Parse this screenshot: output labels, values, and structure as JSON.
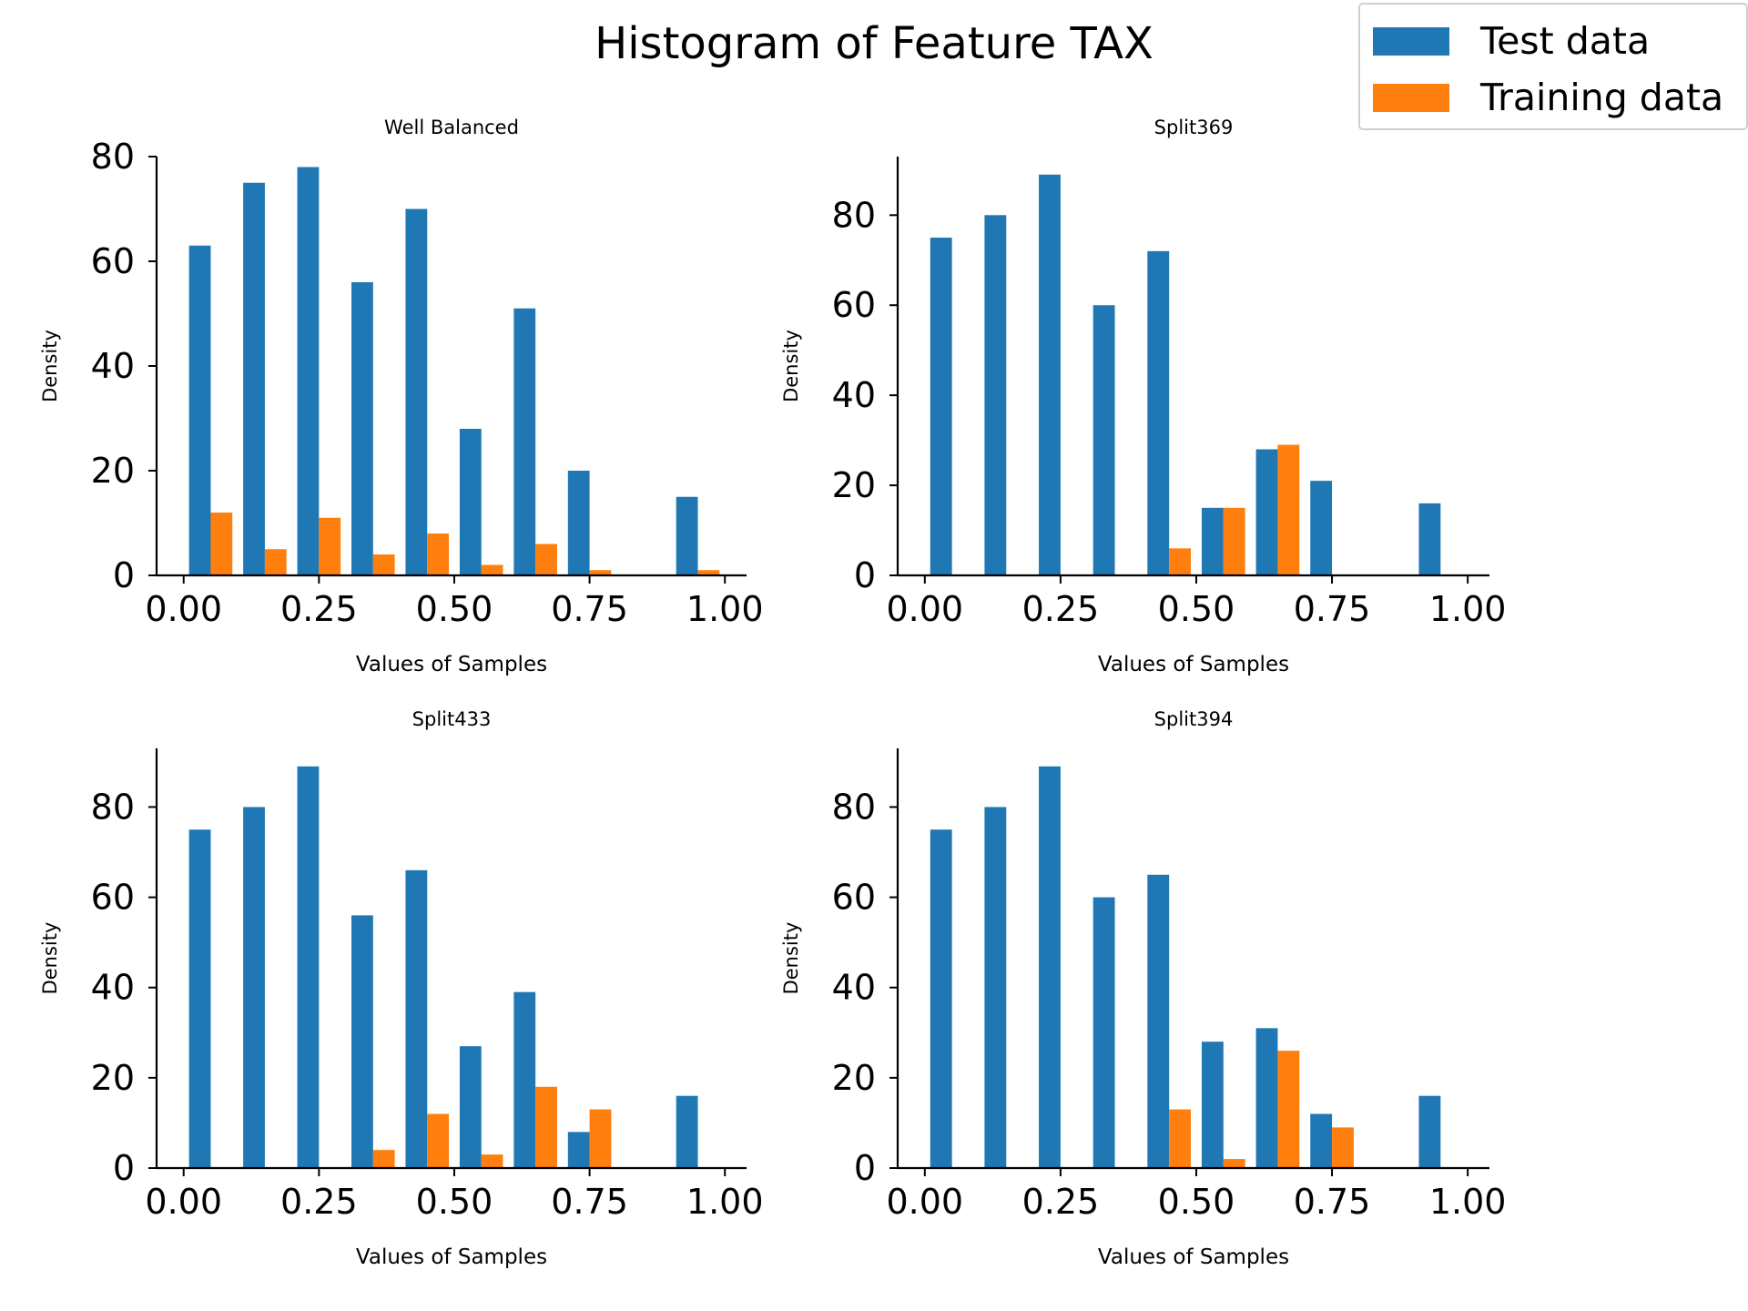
{
  "figure": {
    "title": "Histogram of Feature TAX"
  },
  "legend": {
    "items": [
      {
        "label": "Test data",
        "color": "#1f77b4"
      },
      {
        "label": "Training data",
        "color": "#ff7f0e"
      }
    ]
  },
  "chart_data": [
    {
      "type": "bar",
      "title": "Well Balanced",
      "xlabel": "Values of Samples",
      "ylabel": "Density",
      "xlim": [
        -0.05,
        1.04
      ],
      "ylim": [
        0,
        80
      ],
      "xticks": [
        "0.00",
        "0.25",
        "0.50",
        "0.75",
        "1.00"
      ],
      "yticks": [
        "0",
        "20",
        "40",
        "60",
        "80"
      ],
      "bin_centers": [
        0.05,
        0.15,
        0.25,
        0.35,
        0.45,
        0.55,
        0.65,
        0.75,
        0.85,
        0.95
      ],
      "series": [
        {
          "name": "Test data",
          "values": [
            63,
            75,
            78,
            56,
            70,
            28,
            51,
            20,
            0,
            15
          ]
        },
        {
          "name": "Training data",
          "values": [
            12,
            5,
            11,
            4,
            8,
            2,
            6,
            1,
            0,
            1
          ]
        }
      ]
    },
    {
      "type": "bar",
      "title": "Split369",
      "xlabel": "Values of Samples",
      "ylabel": "Density",
      "xlim": [
        -0.05,
        1.04
      ],
      "ylim": [
        0,
        93
      ],
      "xticks": [
        "0.00",
        "0.25",
        "0.50",
        "0.75",
        "1.00"
      ],
      "yticks": [
        "0",
        "20",
        "40",
        "60",
        "80"
      ],
      "bin_centers": [
        0.05,
        0.15,
        0.25,
        0.35,
        0.45,
        0.55,
        0.65,
        0.75,
        0.85,
        0.95
      ],
      "series": [
        {
          "name": "Test data",
          "values": [
            75,
            80,
            89,
            60,
            72,
            15,
            28,
            21,
            0,
            16
          ]
        },
        {
          "name": "Training data",
          "values": [
            0,
            0,
            0,
            0,
            6,
            15,
            29,
            0,
            0,
            0
          ]
        }
      ]
    },
    {
      "type": "bar",
      "title": "Split433",
      "xlabel": "Values of Samples",
      "ylabel": "Density",
      "xlim": [
        -0.05,
        1.04
      ],
      "ylim": [
        0,
        93
      ],
      "xticks": [
        "0.00",
        "0.25",
        "0.50",
        "0.75",
        "1.00"
      ],
      "yticks": [
        "0",
        "20",
        "40",
        "60",
        "80"
      ],
      "bin_centers": [
        0.05,
        0.15,
        0.25,
        0.35,
        0.45,
        0.55,
        0.65,
        0.75,
        0.85,
        0.95
      ],
      "series": [
        {
          "name": "Test data",
          "values": [
            75,
            80,
            89,
            56,
            66,
            27,
            39,
            8,
            0,
            16
          ]
        },
        {
          "name": "Training data",
          "values": [
            0,
            0,
            0,
            4,
            12,
            3,
            18,
            13,
            0,
            0
          ]
        }
      ]
    },
    {
      "type": "bar",
      "title": "Split394",
      "xlabel": "Values of Samples",
      "ylabel": "Density",
      "xlim": [
        -0.05,
        1.04
      ],
      "ylim": [
        0,
        93
      ],
      "xticks": [
        "0.00",
        "0.25",
        "0.50",
        "0.75",
        "1.00"
      ],
      "yticks": [
        "0",
        "20",
        "40",
        "60",
        "80"
      ],
      "bin_centers": [
        0.05,
        0.15,
        0.25,
        0.35,
        0.45,
        0.55,
        0.65,
        0.75,
        0.85,
        0.95
      ],
      "series": [
        {
          "name": "Test data",
          "values": [
            75,
            80,
            89,
            60,
            65,
            28,
            31,
            12,
            0,
            16
          ]
        },
        {
          "name": "Training data",
          "values": [
            0,
            0,
            0,
            0,
            13,
            2,
            26,
            9,
            0,
            0
          ]
        }
      ]
    }
  ]
}
